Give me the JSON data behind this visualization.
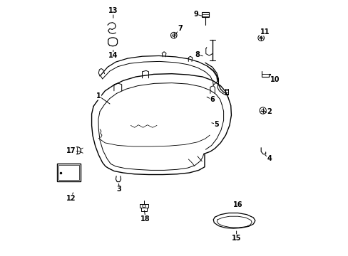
{
  "bg_color": "#ffffff",
  "line_color": "#000000",
  "figsize": [
    4.89,
    3.6
  ],
  "dpi": 100,
  "label_data": [
    [
      1,
      0.205,
      0.375,
      0.255,
      0.41
    ],
    [
      2,
      0.87,
      0.435,
      0.845,
      0.445
    ],
    [
      3,
      0.285,
      0.74,
      0.283,
      0.71
    ],
    [
      4,
      0.87,
      0.62,
      0.848,
      0.6
    ],
    [
      5,
      0.665,
      0.485,
      0.638,
      0.478
    ],
    [
      6,
      0.648,
      0.39,
      0.62,
      0.375
    ],
    [
      7,
      0.522,
      0.11,
      0.5,
      0.14
    ],
    [
      8,
      0.59,
      0.215,
      0.618,
      0.22
    ],
    [
      9,
      0.583,
      0.055,
      0.618,
      0.065
    ],
    [
      10,
      0.892,
      0.31,
      0.862,
      0.295
    ],
    [
      11,
      0.852,
      0.125,
      0.828,
      0.155
    ],
    [
      12,
      0.098,
      0.775,
      0.108,
      0.745
    ],
    [
      13,
      0.262,
      0.042,
      0.262,
      0.078
    ],
    [
      14,
      0.262,
      0.218,
      0.262,
      0.188
    ],
    [
      15,
      0.742,
      0.93,
      0.742,
      0.895
    ],
    [
      16,
      0.748,
      0.8,
      0.758,
      0.82
    ],
    [
      17,
      0.098,
      0.588,
      0.122,
      0.592
    ],
    [
      18,
      0.388,
      0.855,
      0.382,
      0.815
    ]
  ]
}
